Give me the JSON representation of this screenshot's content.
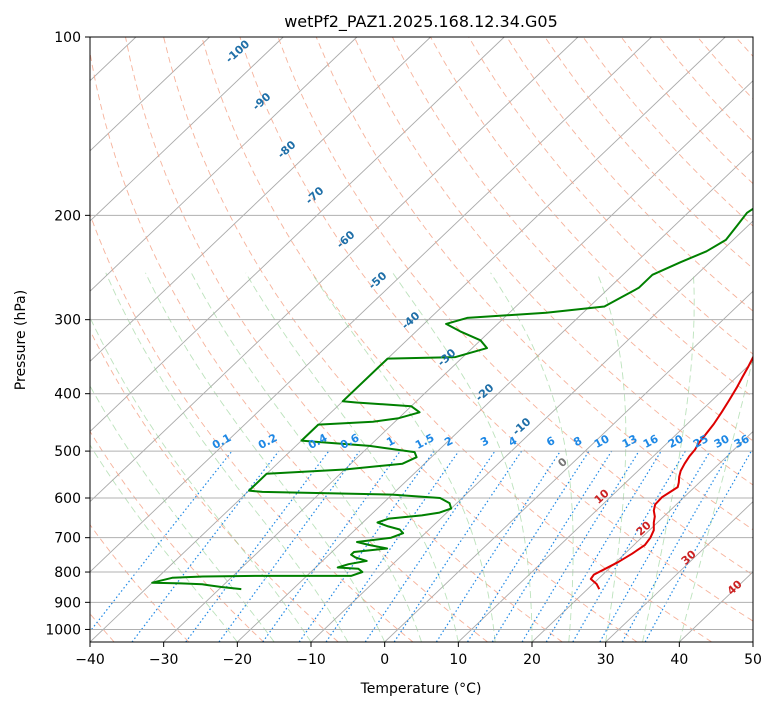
{
  "chart_data": {
    "type": "line",
    "chart_kind": "skew-T log-P",
    "title": "wetPf2_PAZ1.2025.168.12.34.G05",
    "xlabel": "Temperature (°C)",
    "ylabel": "Pressure (hPa)",
    "xlim": [
      -40,
      50
    ],
    "ylim": [
      1050,
      100
    ],
    "y_scale": "log",
    "grid": true,
    "x_ticks": [
      -40,
      -30,
      -20,
      -10,
      0,
      10,
      20,
      30,
      40,
      50
    ],
    "y_ticks": [
      100,
      200,
      300,
      400,
      500,
      600,
      700,
      800,
      900,
      1000
    ],
    "series": [
      {
        "color": "#dd0000",
        "points": [
          [
            21.6,
            855
          ],
          [
            20.5,
            838
          ],
          [
            19.0,
            822
          ],
          [
            18.8,
            808
          ],
          [
            19.5,
            790
          ],
          [
            20.3,
            770
          ],
          [
            21.0,
            745
          ],
          [
            21.5,
            720
          ],
          [
            21.2,
            700
          ],
          [
            20.6,
            680
          ],
          [
            19.5,
            660
          ],
          [
            18.8,
            645
          ],
          [
            17.8,
            630
          ],
          [
            17.1,
            615
          ],
          [
            17.0,
            598
          ],
          [
            17.4,
            585
          ],
          [
            17.7,
            575
          ],
          [
            17.2,
            565
          ],
          [
            16.4,
            552
          ],
          [
            15.8,
            540
          ],
          [
            15.3,
            525
          ],
          [
            14.9,
            510
          ],
          [
            14.7,
            497
          ],
          [
            14.3,
            485
          ],
          [
            14.0,
            470
          ],
          [
            13.6,
            450
          ],
          [
            13.0,
            430
          ],
          [
            12.3,
            410
          ],
          [
            11.5,
            390
          ],
          [
            10.8,
            375
          ],
          [
            10.1,
            360
          ],
          [
            9.3,
            345
          ],
          [
            8.5,
            330
          ],
          [
            7.7,
            315
          ],
          [
            6.8,
            300
          ],
          [
            6.1,
            287
          ],
          [
            5.2,
            272
          ],
          [
            4.5,
            260
          ],
          [
            4.3,
            248
          ],
          [
            4.4,
            235
          ],
          [
            4.2,
            222
          ],
          [
            4.0,
            210
          ],
          [
            4.4,
            198
          ],
          [
            5.1,
            186
          ],
          [
            5.6,
            173
          ],
          [
            5.5,
            160
          ],
          [
            5.3,
            147
          ],
          [
            5.2,
            135
          ],
          [
            5.0,
            124
          ],
          [
            6.2,
            116
          ],
          [
            8.0,
            111
          ],
          [
            10.1,
            106
          ],
          [
            11.8,
            102
          ],
          [
            12.4,
            100
          ]
        ]
      },
      {
        "color": "#008000",
        "points": [
          [
            -27,
            855
          ],
          [
            -30,
            848
          ],
          [
            -32,
            842
          ],
          [
            -33,
            839
          ],
          [
            -36,
            836
          ],
          [
            -40,
            834
          ],
          [
            -38,
            818
          ],
          [
            -34,
            814
          ],
          [
            -27,
            812
          ],
          [
            -14,
            812
          ],
          [
            -13,
            800
          ],
          [
            -14,
            790
          ],
          [
            -17,
            786
          ],
          [
            -16,
            776
          ],
          [
            -14,
            766
          ],
          [
            -16,
            756
          ],
          [
            -17,
            748
          ],
          [
            -17,
            740
          ],
          [
            -13,
            730
          ],
          [
            -16,
            720
          ],
          [
            -18,
            712
          ],
          [
            -14,
            700
          ],
          [
            -13,
            688
          ],
          [
            -14,
            678
          ],
          [
            -16,
            670
          ],
          [
            -18,
            660
          ],
          [
            -17,
            650
          ],
          [
            -13,
            642
          ],
          [
            -11,
            635
          ],
          [
            -10,
            625
          ],
          [
            -11,
            612
          ],
          [
            -13,
            600
          ],
          [
            -20,
            592
          ],
          [
            -38,
            586
          ],
          [
            -40,
            583
          ],
          [
            -40,
            546
          ],
          [
            -30,
            537
          ],
          [
            -23,
            525
          ],
          [
            -22,
            512
          ],
          [
            -23,
            502
          ],
          [
            -30,
            490
          ],
          [
            -38,
            482
          ],
          [
            -40,
            480
          ],
          [
            -40,
            451
          ],
          [
            -33,
            446
          ],
          [
            -30,
            440
          ],
          [
            -28,
            430
          ],
          [
            -30,
            420
          ],
          [
            -38,
            414
          ],
          [
            -40,
            412
          ],
          [
            -40,
            349
          ],
          [
            -31,
            347
          ],
          [
            -28,
            335
          ],
          [
            -30,
            325
          ],
          [
            -34,
            314
          ],
          [
            -37,
            305
          ],
          [
            -35,
            298
          ],
          [
            -25,
            292
          ],
          [
            -18,
            285
          ],
          [
            -17,
            275
          ],
          [
            -16,
            265
          ],
          [
            -16,
            252
          ],
          [
            -14,
            240
          ],
          [
            -12,
            230
          ],
          [
            -11,
            220
          ],
          [
            -11.5,
            208
          ],
          [
            -12,
            198
          ],
          [
            -11,
            186
          ],
          [
            -10,
            174
          ],
          [
            -9,
            165
          ],
          [
            -7,
            155
          ],
          [
            -5.5,
            143
          ],
          [
            -2,
            130
          ],
          [
            -1,
            120
          ],
          [
            -1,
            110
          ],
          [
            -0.5,
            103
          ],
          [
            0.5,
            100
          ]
        ]
      }
    ],
    "dry_adiabat_labels": [
      "-100",
      "-90",
      "-80",
      "-70",
      "-60",
      "-50",
      "-40",
      "-30",
      "-20",
      "-10",
      "0",
      "10",
      "20",
      "30",
      "40"
    ],
    "mixing_ratio_labels": [
      "0.1",
      "0.2",
      "0.4",
      "0.6",
      "1",
      "1.5",
      "2",
      "3",
      "4",
      "6",
      "8",
      "10",
      "13",
      "16",
      "20",
      "25",
      "30",
      "36"
    ],
    "label_colors": {
      "cold": "#1f6fa8",
      "zero": "#777777",
      "warm": "#cc2222",
      "mixing_ratio": "#1e88e5"
    }
  }
}
